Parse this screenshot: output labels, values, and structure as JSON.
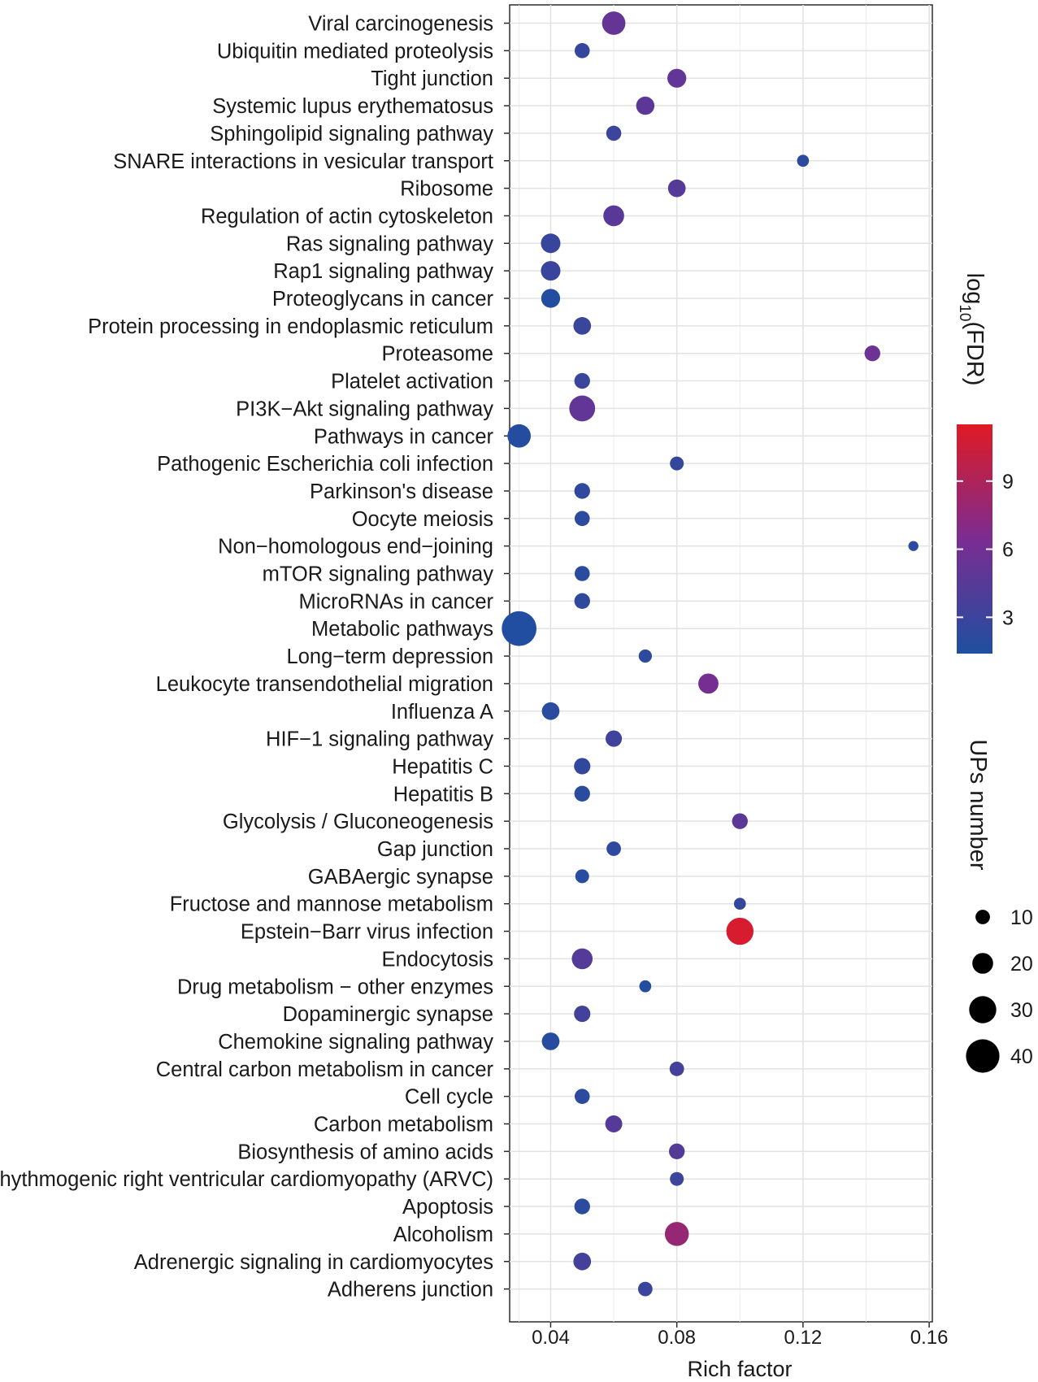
{
  "chart_data": {
    "type": "scatter",
    "xlabel": "Rich factor",
    "xlim": [
      0.027,
      0.161
    ],
    "xticks": [
      0.04,
      0.08,
      0.12,
      0.16
    ],
    "xtick_labels": [
      "0.04",
      "0.08",
      "0.12",
      "0.16"
    ],
    "grid": true,
    "color_legend": {
      "title_base": "log",
      "title_sub": "10",
      "title_rest": "(FDR)",
      "range": [
        1.4,
        11.5
      ],
      "ticks": [
        3,
        6,
        9
      ],
      "tick_labels": [
        "3",
        "6",
        "9"
      ],
      "low_color": "#1f4fa0",
      "mid_color": "#7b2c92",
      "high_color": "#e01a23"
    },
    "size_legend": {
      "title": "UPs number",
      "values": [
        10,
        20,
        30,
        40
      ],
      "labels": [
        "10",
        "20",
        "30",
        "40"
      ]
    },
    "points": [
      {
        "term": "Viral carcinogenesis",
        "rich_factor": 0.06,
        "fdr_log10": 5.2,
        "count": 24
      },
      {
        "term": "Ubiquitin mediated proteolysis",
        "rich_factor": 0.05,
        "fdr_log10": 2.6,
        "count": 11
      },
      {
        "term": "Tight junction",
        "rich_factor": 0.08,
        "fdr_log10": 5.0,
        "count": 17
      },
      {
        "term": "Systemic lupus erythematosus",
        "rich_factor": 0.07,
        "fdr_log10": 4.8,
        "count": 16
      },
      {
        "term": "Sphingolipid signaling pathway",
        "rich_factor": 0.06,
        "fdr_log10": 3.0,
        "count": 11
      },
      {
        "term": "SNARE interactions in vesicular transport",
        "rich_factor": 0.12,
        "fdr_log10": 2.0,
        "count": 6
      },
      {
        "term": "Ribosome",
        "rich_factor": 0.08,
        "fdr_log10": 4.5,
        "count": 15
      },
      {
        "term": "Regulation of actin cytoskeleton",
        "rich_factor": 0.06,
        "fdr_log10": 4.6,
        "count": 20
      },
      {
        "term": "Ras signaling pathway",
        "rich_factor": 0.04,
        "fdr_log10": 2.7,
        "count": 18
      },
      {
        "term": "Rap1 signaling pathway",
        "rich_factor": 0.04,
        "fdr_log10": 2.8,
        "count": 18
      },
      {
        "term": "Proteoglycans in cancer",
        "rich_factor": 0.04,
        "fdr_log10": 1.6,
        "count": 17
      },
      {
        "term": "Protein processing in endoplasmic reticulum",
        "rich_factor": 0.05,
        "fdr_log10": 2.9,
        "count": 15
      },
      {
        "term": "Proteasome",
        "rich_factor": 0.142,
        "fdr_log10": 5.6,
        "count": 12
      },
      {
        "term": "Platelet activation",
        "rich_factor": 0.05,
        "fdr_log10": 2.9,
        "count": 12
      },
      {
        "term": "PI3K−Akt signaling pathway",
        "rich_factor": 0.05,
        "fdr_log10": 5.0,
        "count": 28
      },
      {
        "term": "Pathways in cancer",
        "rich_factor": 0.03,
        "fdr_log10": 1.7,
        "count": 24
      },
      {
        "term": "Pathogenic Escherichia coli infection",
        "rich_factor": 0.08,
        "fdr_log10": 2.6,
        "count": 9
      },
      {
        "term": "Parkinson's disease",
        "rich_factor": 0.05,
        "fdr_log10": 2.3,
        "count": 12
      },
      {
        "term": "Oocyte meiosis",
        "rich_factor": 0.05,
        "fdr_log10": 2.1,
        "count": 11
      },
      {
        "term": "Non−homologous end−joining",
        "rich_factor": 0.155,
        "fdr_log10": 2.1,
        "count": 3
      },
      {
        "term": "mTOR signaling pathway",
        "rich_factor": 0.05,
        "fdr_log10": 2.0,
        "count": 11
      },
      {
        "term": "MicroRNAs in cancer",
        "rich_factor": 0.05,
        "fdr_log10": 2.3,
        "count": 12
      },
      {
        "term": "Metabolic pathways",
        "rich_factor": 0.03,
        "fdr_log10": 1.5,
        "count": 42
      },
      {
        "term": "Long−term depression",
        "rich_factor": 0.07,
        "fdr_log10": 2.1,
        "count": 8
      },
      {
        "term": "Leukocyte transendothelial migration",
        "rich_factor": 0.09,
        "fdr_log10": 6.2,
        "count": 19
      },
      {
        "term": "Influenza A",
        "rich_factor": 0.04,
        "fdr_log10": 2.0,
        "count": 15
      },
      {
        "term": "HIF−1 signaling pathway",
        "rich_factor": 0.06,
        "fdr_log10": 3.2,
        "count": 13
      },
      {
        "term": "Hepatitis C",
        "rich_factor": 0.05,
        "fdr_log10": 2.4,
        "count": 13
      },
      {
        "term": "Hepatitis B",
        "rich_factor": 0.05,
        "fdr_log10": 2.0,
        "count": 12
      },
      {
        "term": "Glycolysis / Gluconeogenesis",
        "rich_factor": 0.1,
        "fdr_log10": 4.7,
        "count": 12
      },
      {
        "term": "Gap junction",
        "rich_factor": 0.06,
        "fdr_log10": 2.3,
        "count": 10
      },
      {
        "term": "GABAergic synapse",
        "rich_factor": 0.05,
        "fdr_log10": 1.9,
        "count": 9
      },
      {
        "term": "Fructose and mannose metabolism",
        "rich_factor": 0.1,
        "fdr_log10": 2.6,
        "count": 6
      },
      {
        "term": "Epstein−Barr virus infection",
        "rich_factor": 0.1,
        "fdr_log10": 11.0,
        "count": 30
      },
      {
        "term": "Endocytosis",
        "rich_factor": 0.05,
        "fdr_log10": 4.3,
        "count": 20
      },
      {
        "term": "Drug metabolism − other enzymes",
        "rich_factor": 0.07,
        "fdr_log10": 1.6,
        "count": 6
      },
      {
        "term": "Dopaminergic synapse",
        "rich_factor": 0.05,
        "fdr_log10": 3.3,
        "count": 13
      },
      {
        "term": "Chemokine signaling pathway",
        "rich_factor": 0.04,
        "fdr_log10": 1.8,
        "count": 15
      },
      {
        "term": "Central carbon metabolism in cancer",
        "rich_factor": 0.08,
        "fdr_log10": 3.5,
        "count": 10
      },
      {
        "term": "Cell cycle",
        "rich_factor": 0.05,
        "fdr_log10": 2.1,
        "count": 11
      },
      {
        "term": "Carbon metabolism",
        "rich_factor": 0.06,
        "fdr_log10": 4.4,
        "count": 14
      },
      {
        "term": "Biosynthesis of amino acids",
        "rich_factor": 0.08,
        "fdr_log10": 4.2,
        "count": 12
      },
      {
        "term": "Arrhythmogenic right ventricular cardiomyopathy (ARVC)",
        "rich_factor": 0.08,
        "fdr_log10": 3.0,
        "count": 9
      },
      {
        "term": "Apoptosis",
        "rich_factor": 0.05,
        "fdr_log10": 2.0,
        "count": 12
      },
      {
        "term": "Alcoholism",
        "rich_factor": 0.08,
        "fdr_log10": 7.8,
        "count": 25
      },
      {
        "term": "Adrenergic signaling in cardiomyocytes",
        "rich_factor": 0.05,
        "fdr_log10": 3.4,
        "count": 15
      },
      {
        "term": "Adherens junction",
        "rich_factor": 0.07,
        "fdr_log10": 2.9,
        "count": 10
      }
    ]
  }
}
